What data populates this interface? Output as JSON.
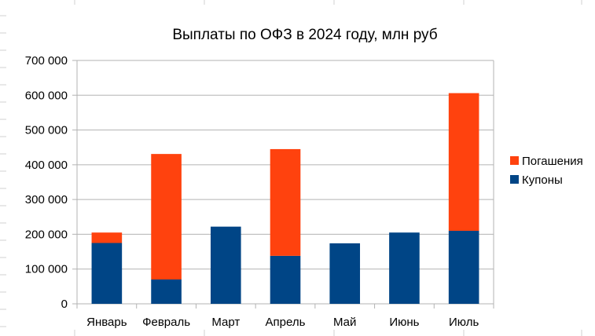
{
  "chart_data": {
    "type": "bar",
    "stacked": true,
    "title": "Выплаты по ОФЗ в 2024 году, млн руб",
    "xlabel": "",
    "ylabel": "",
    "categories": [
      "Январь",
      "Февраль",
      "Март",
      "Апрель",
      "Май",
      "Июнь",
      "Июль"
    ],
    "series": [
      {
        "name": "Купоны",
        "color": "#004586",
        "values": [
          175000,
          70000,
          222000,
          138000,
          174000,
          205000,
          210000
        ]
      },
      {
        "name": "Погашения",
        "color": "#ff420e",
        "values": [
          30000,
          361000,
          0,
          307000,
          0,
          0,
          396000
        ]
      }
    ],
    "ylim": [
      0,
      700000
    ],
    "yticks": [
      0,
      100000,
      200000,
      300000,
      400000,
      500000,
      600000,
      700000
    ],
    "ytick_labels": [
      "0",
      "100 000",
      "200 000",
      "300 000",
      "400 000",
      "500 000",
      "600 000",
      "700 000"
    ],
    "grid": true,
    "legend": {
      "placement": "right",
      "order": [
        "Погашения",
        "Купоны"
      ]
    }
  }
}
